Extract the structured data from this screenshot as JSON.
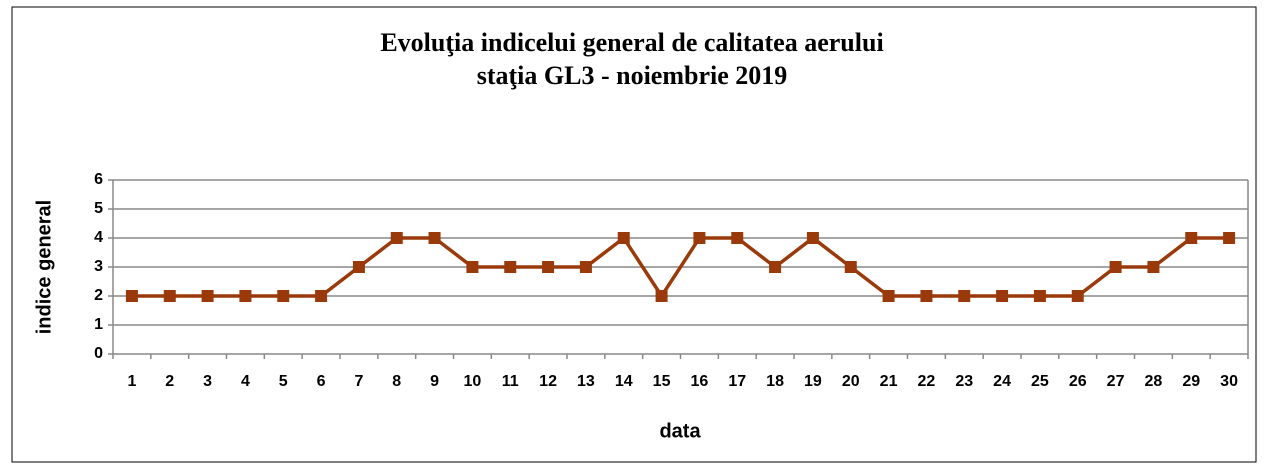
{
  "chart_data": {
    "type": "line",
    "title": [
      "Evoluţia indicelui general de calitatea aerului",
      "staţia GL3 - noiembrie 2019"
    ],
    "x_label": "data",
    "y_label": "indice general",
    "categories": [
      "1",
      "2",
      "3",
      "4",
      "5",
      "6",
      "7",
      "8",
      "9",
      "10",
      "11",
      "12",
      "13",
      "14",
      "15",
      "16",
      "17",
      "18",
      "19",
      "20",
      "21",
      "22",
      "23",
      "24",
      "25",
      "26",
      "27",
      "28",
      "29",
      "30"
    ],
    "values": [
      2,
      2,
      2,
      2,
      2,
      2,
      3,
      4,
      4,
      3,
      3,
      3,
      3,
      4,
      2,
      4,
      4,
      3,
      4,
      3,
      2,
      2,
      2,
      2,
      2,
      2,
      3,
      3,
      4,
      4
    ],
    "color": "#9a3a0a",
    "ylim": [
      0,
      6
    ],
    "yticks": [
      0,
      1,
      2,
      3,
      4,
      5,
      6
    ],
    "grid": true
  }
}
